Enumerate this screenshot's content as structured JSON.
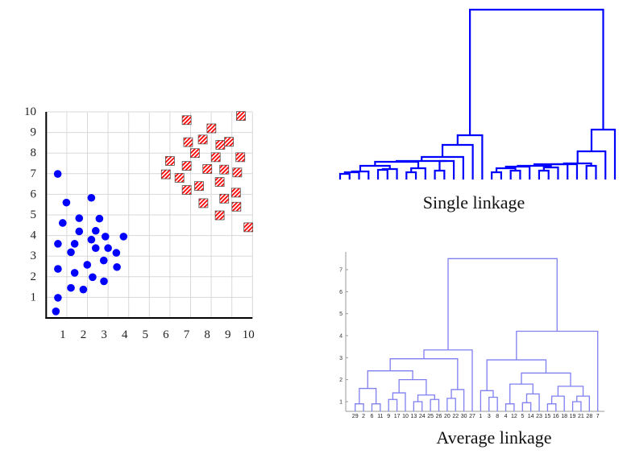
{
  "colors": {
    "blue": "#0000ff",
    "red": "#ff0000",
    "avg_line": "#7f7ff0",
    "grid": "#d8d8d8"
  },
  "chart_data": [
    {
      "type": "scatter",
      "title": "",
      "xlim": [
        0,
        10
      ],
      "ylim": [
        0,
        10
      ],
      "xticks": [
        "1",
        "2",
        "3",
        "4",
        "5",
        "6",
        "7",
        "8",
        "9",
        "10"
      ],
      "yticks": [
        "1",
        "2",
        "3",
        "4",
        "5",
        "6",
        "7",
        "8",
        "9",
        "10"
      ],
      "grid": true,
      "series": [
        {
          "name": "cluster-blue",
          "marker": "circle",
          "points": [
            [
              0.56,
              6.99
            ],
            [
              0.98,
              5.6
            ],
            [
              0.8,
              4.61
            ],
            [
              1.6,
              4.84
            ],
            [
              2.58,
              4.82
            ],
            [
              2.19,
              5.83
            ],
            [
              1.6,
              4.2
            ],
            [
              2.4,
              4.23
            ],
            [
              2.19,
              3.8
            ],
            [
              2.87,
              3.95
            ],
            [
              3.75,
              3.95
            ],
            [
              0.57,
              3.6
            ],
            [
              1.38,
              3.6
            ],
            [
              1.2,
              3.19
            ],
            [
              2.4,
              3.39
            ],
            [
              3.0,
              3.39
            ],
            [
              3.4,
              3.16
            ],
            [
              0.57,
              2.38
            ],
            [
              1.38,
              2.19
            ],
            [
              1.99,
              2.58
            ],
            [
              2.79,
              2.79
            ],
            [
              3.43,
              2.47
            ],
            [
              2.25,
              1.98
            ],
            [
              2.8,
              1.78
            ],
            [
              1.2,
              1.46
            ],
            [
              1.8,
              1.38
            ],
            [
              0.57,
              0.98
            ],
            [
              0.47,
              0.32
            ]
          ]
        },
        {
          "name": "cluster-red",
          "marker": "hatched-square",
          "points": [
            [
              6.81,
              9.6
            ],
            [
              9.44,
              9.8
            ],
            [
              8.01,
              9.2
            ],
            [
              6.88,
              8.53
            ],
            [
              7.59,
              8.66
            ],
            [
              8.44,
              8.4
            ],
            [
              8.86,
              8.55
            ],
            [
              7.21,
              8.0
            ],
            [
              8.22,
              7.8
            ],
            [
              9.41,
              7.8
            ],
            [
              6.0,
              7.62
            ],
            [
              6.81,
              7.38
            ],
            [
              7.81,
              7.23
            ],
            [
              8.63,
              7.2
            ],
            [
              9.26,
              7.06
            ],
            [
              5.8,
              6.97
            ],
            [
              6.46,
              6.8
            ],
            [
              8.41,
              6.6
            ],
            [
              7.41,
              6.4
            ],
            [
              6.81,
              6.21
            ],
            [
              9.2,
              6.08
            ],
            [
              7.62,
              5.57
            ],
            [
              8.63,
              5.79
            ],
            [
              9.22,
              5.4
            ],
            [
              8.41,
              4.98
            ],
            [
              9.8,
              4.4
            ]
          ]
        }
      ]
    },
    {
      "type": "dendrogram",
      "title": "Single linkage",
      "tree": {
        "h": 211,
        "c": [
          {
            "h": 55,
            "c": [
              {
                "h": 43,
                "c": [
                  {
                    "h": 28,
                    "c": [
                      {
                        "h": 23,
                        "c": [
                          {
                            "h": 22,
                            "c": [
                              {
                                "h": 17,
                                "c": [
                                  {
                                    "h": 10,
                                    "c": [
                                      {
                                        "h": 9,
                                        "c": [
                                          {
                                            "h": 7,
                                            "c": [
                                              0,
                                              0
                                            ]
                                          },
                                          0
                                        ]
                                      },
                                      0
                                    ]
                                  },
                                  {
                                    "h": 13,
                                    "c": [
                                      {
                                        "h": 12,
                                        "c": [
                                          0,
                                          0
                                        ]
                                      },
                                      0
                                    ]
                                  }
                                ]
                              },
                              {
                                "h": 14,
                                "c": [
                                  {
                                    "h": 9,
                                    "c": [
                                      0,
                                      0
                                    ]
                                  },
                                  0
                                ]
                              }
                            ]
                          },
                          {
                            "h": 23,
                            "c": [
                              {
                                "h": 11,
                                "c": [
                                  0,
                                  0
                                ]
                              },
                              0
                            ]
                          }
                        ]
                      },
                      0
                    ]
                  },
                  0
                ]
              },
              0
            ]
          },
          {
            "h": 62,
            "c": [
              {
                "h": 35,
                "c": [
                  {
                    "h": 20,
                    "c": [
                      {
                        "h": 19,
                        "c": [
                          {
                            "h": 19,
                            "c": [
                              {
                                "h": 17,
                                "c": [
                                  {
                                    "h": 16,
                                    "c": [
                                      {
                                        "h": 14,
                                        "c": [
                                          {
                                            "h": 9,
                                            "c": [
                                              0,
                                              0
                                            ]
                                          },
                                          {
                                            "h": 11,
                                            "c": [
                                              0,
                                              0
                                            ]
                                          }
                                        ]
                                      },
                                      0
                                    ]
                                  },
                                  {
                                    "h": 15,
                                    "c": [
                                      {
                                        "h": 11,
                                        "c": [
                                          0,
                                          0
                                        ]
                                      },
                                      0
                                    ]
                                  }
                                ]
                              },
                              0
                            ]
                          },
                          0
                        ]
                      },
                      {
                        "h": 17,
                        "c": [
                          0,
                          0
                        ]
                      }
                    ]
                  },
                  0
                ]
              },
              0
            ]
          }
        ]
      }
    },
    {
      "type": "dendrogram",
      "title": "Average linkage",
      "yticks": [
        "1",
        "2",
        "3",
        "4",
        "5",
        "6",
        "7"
      ],
      "tree": {
        "h": 7.5,
        "c": [
          {
            "h": 3.35,
            "c": [
              {
                "h": 2.95,
                "c": [
                  {
                    "h": 2.4,
                    "c": [
                      {
                        "h": 1.6,
                        "c": [
                          {
                            "h": 0.9,
                            "c": [
                              "29",
                              "2"
                            ]
                          },
                          {
                            "h": 0.9,
                            "c": [
                              "6",
                              "11"
                            ]
                          }
                        ]
                      },
                      {
                        "h": 2.0,
                        "c": [
                          {
                            "h": 1.4,
                            "c": [
                              {
                                "h": 1.1,
                                "c": [
                                  "9",
                                  "17"
                                ]
                              },
                              "10"
                            ]
                          },
                          {
                            "h": 1.3,
                            "c": [
                              {
                                "h": 1.0,
                                "c": [
                                  "13",
                                  "24"
                                ]
                              },
                              {
                                "h": 1.1,
                                "c": [
                                  "25",
                                  "26"
                                ]
                              }
                            ]
                          }
                        ]
                      }
                    ]
                  },
                  {
                    "h": 1.55,
                    "c": [
                      {
                        "h": 1.15,
                        "c": [
                          "20",
                          "22"
                        ]
                      },
                      "30"
                    ]
                  }
                ]
              },
              "27"
            ]
          },
          {
            "h": 4.2,
            "c": [
              {
                "h": 2.9,
                "c": [
                  {
                    "h": 1.5,
                    "c": [
                      "1",
                      {
                        "h": 1.2,
                        "c": [
                          "3",
                          "8"
                        ]
                      }
                    ]
                  },
                  {
                    "h": 2.3,
                    "c": [
                      {
                        "h": 1.8,
                        "c": [
                          {
                            "h": 0.9,
                            "c": [
                              "4",
                              "12"
                            ]
                          },
                          {
                            "h": 1.35,
                            "c": [
                              {
                                "h": 0.95,
                                "c": [
                                  "5",
                                  "14"
                                ]
                              },
                              "23"
                            ]
                          }
                        ]
                      },
                      {
                        "h": 1.7,
                        "c": [
                          {
                            "h": 1.25,
                            "c": [
                              {
                                "h": 0.9,
                                "c": [
                                  "15",
                                  "16"
                                ]
                              },
                              "18"
                            ]
                          },
                          {
                            "h": 1.25,
                            "c": [
                              {
                                "h": 1.0,
                                "c": [
                                  "19",
                                  "21"
                                ]
                              },
                              "28"
                            ]
                          }
                        ]
                      }
                    ]
                  }
                ]
              },
              "7"
            ]
          }
        ]
      }
    }
  ]
}
